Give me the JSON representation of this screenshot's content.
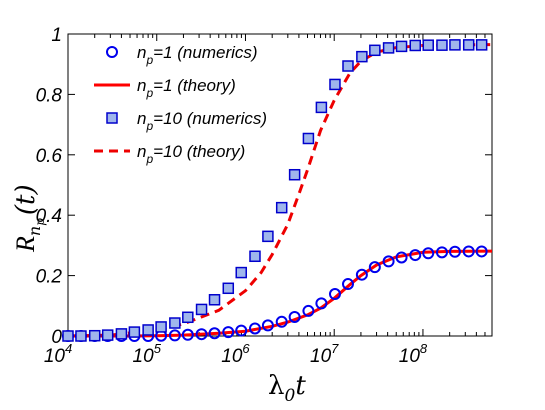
{
  "chart_data": {
    "type": "scatter",
    "xscale": "log",
    "xlim": [
      10000,
      600000000
    ],
    "ylim": [
      0,
      1
    ],
    "grid": false,
    "legend_position": "top-left",
    "xlabel": {
      "main": "λ",
      "sub": "0",
      "tail": "t"
    },
    "ylabel": {
      "main": "R",
      "sub": "n",
      "subsub": "p",
      "tail": "(t)"
    },
    "x_ticks": [
      {
        "base": "10",
        "exp": "4",
        "value": 10000
      },
      {
        "base": "10",
        "exp": "5",
        "value": 100000
      },
      {
        "base": "10",
        "exp": "6",
        "value": 1000000
      },
      {
        "base": "10",
        "exp": "7",
        "value": 10000000
      },
      {
        "base": "10",
        "exp": "8",
        "value": 100000000
      }
    ],
    "y_ticks": [
      {
        "label": "0",
        "value": 0
      },
      {
        "label": "0.2",
        "value": 0.2
      },
      {
        "label": "0.4",
        "value": 0.4
      },
      {
        "label": "0.6",
        "value": 0.6
      },
      {
        "label": "0.8",
        "value": 0.8
      },
      {
        "label": "1",
        "value": 1
      }
    ],
    "series": [
      {
        "legend": {
          "pre": "n",
          "sub": "p",
          "post": "=1 (numerics)"
        },
        "kind": "markers-circle",
        "color": "#0000ee",
        "x": [
          10000,
          14000,
          20000,
          28000,
          40000,
          56000,
          80000,
          112000,
          160000,
          224000,
          320000,
          448000,
          640000,
          896000,
          1280000,
          1790000,
          2560000,
          3580000,
          5120000,
          7170000,
          10200000,
          14300000,
          20500000,
          28700000,
          41000000,
          57400000,
          81900000,
          114700000,
          163800000,
          229400000,
          327700000,
          458800000
        ],
        "y": [
          0.0,
          0.0,
          0.0,
          0.0,
          0.0,
          0.0,
          0.0,
          0.001,
          0.002,
          0.004,
          0.006,
          0.009,
          0.013,
          0.018,
          0.025,
          0.035,
          0.047,
          0.063,
          0.083,
          0.108,
          0.139,
          0.172,
          0.203,
          0.228,
          0.247,
          0.26,
          0.268,
          0.274,
          0.277,
          0.279,
          0.28,
          0.28
        ]
      },
      {
        "legend": {
          "pre": "n",
          "sub": "p",
          "post": "=1 (theory)"
        },
        "kind": "line-solid",
        "color": "#ff0000",
        "x": [
          10000,
          20000,
          50000,
          100000,
          200000,
          500000,
          1000000,
          2000000,
          3000000,
          5000000,
          7000000,
          10000000,
          15000000,
          20000000,
          30000000,
          50000000,
          100000000,
          200000000,
          600000000
        ],
        "y": [
          0.0,
          0.0,
          0.0,
          0.001,
          0.003,
          0.009,
          0.016,
          0.032,
          0.046,
          0.07,
          0.092,
          0.125,
          0.17,
          0.2,
          0.235,
          0.262,
          0.277,
          0.28,
          0.281
        ]
      },
      {
        "legend": {
          "pre": "n",
          "sub": "p",
          "post": "=10 (numerics)"
        },
        "kind": "markers-square",
        "color": "#0000cc",
        "fill": "#9fb6ec",
        "x": [
          10000,
          14000,
          20000,
          28000,
          40000,
          56000,
          80000,
          112000,
          160000,
          224000,
          320000,
          448000,
          640000,
          896000,
          1280000,
          1790000,
          2560000,
          3580000,
          5120000,
          7170000,
          10200000,
          14300000,
          20500000,
          28700000,
          41000000,
          57400000,
          81900000,
          114700000,
          163800000,
          229400000,
          327700000,
          458800000
        ],
        "y": [
          0.0,
          0.0,
          0.001,
          0.003,
          0.007,
          0.013,
          0.02,
          0.03,
          0.043,
          0.062,
          0.088,
          0.12,
          0.158,
          0.21,
          0.264,
          0.33,
          0.425,
          0.534,
          0.654,
          0.757,
          0.833,
          0.894,
          0.925,
          0.946,
          0.954,
          0.959,
          0.962,
          0.963,
          0.963,
          0.964,
          0.964,
          0.964
        ]
      },
      {
        "legend": {
          "pre": "n",
          "sub": "p",
          "post": "=10 (theory)"
        },
        "kind": "line-dashed",
        "color": "#ee0000",
        "x": [
          10000,
          30000,
          100000,
          200000,
          500000,
          1000000,
          1500000,
          2000000,
          3000000,
          4000000,
          5000000,
          7000000,
          10000000,
          15000000,
          20000000,
          30000000,
          50000000,
          100000000,
          200000000,
          600000000
        ],
        "y": [
          0.0,
          0.003,
          0.02,
          0.04,
          0.085,
          0.15,
          0.21,
          0.27,
          0.37,
          0.47,
          0.55,
          0.68,
          0.78,
          0.87,
          0.91,
          0.94,
          0.955,
          0.962,
          0.964,
          0.965
        ]
      }
    ]
  }
}
